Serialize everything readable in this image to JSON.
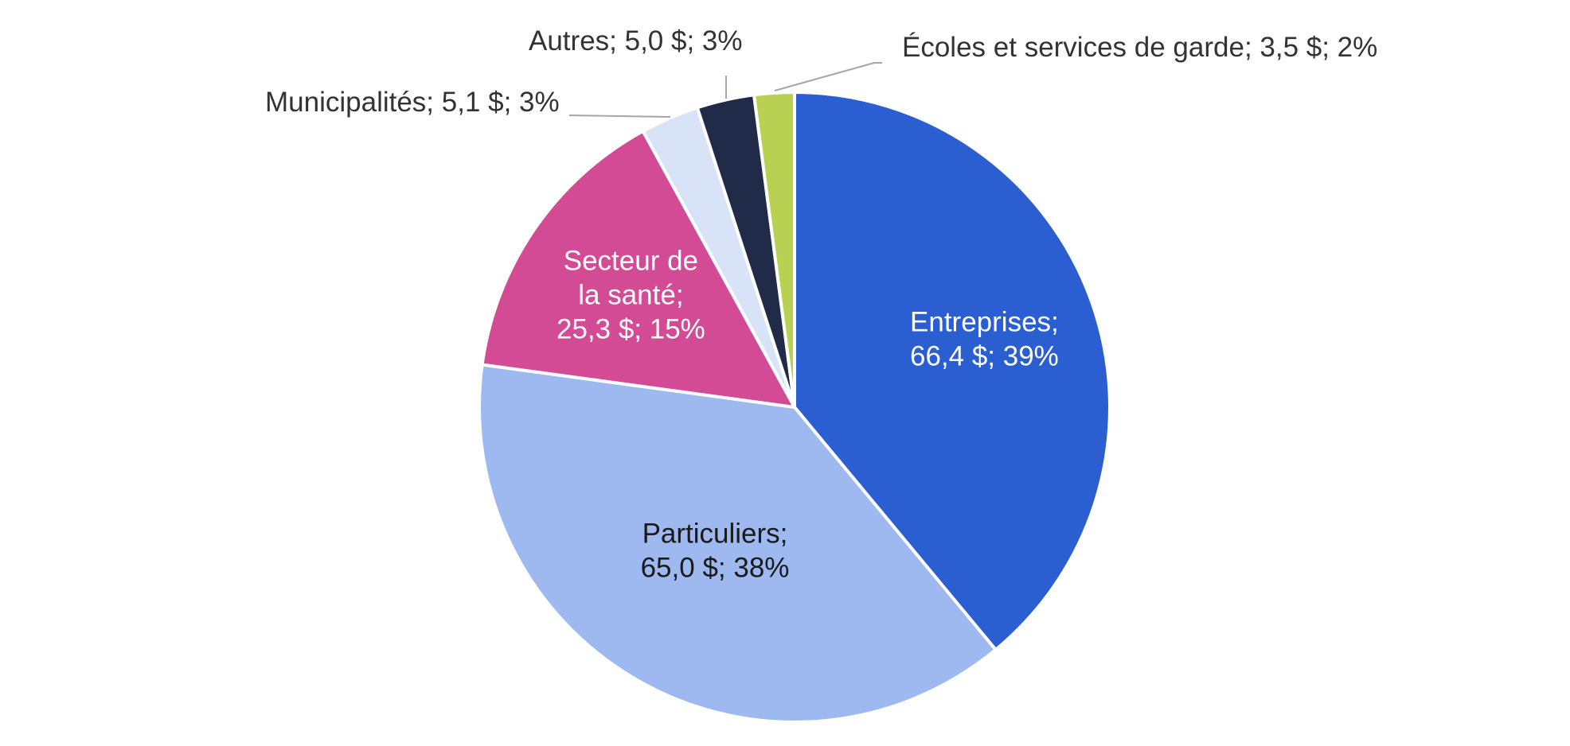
{
  "chart_data": {
    "type": "pie",
    "title": "",
    "start_angle_deg": 0,
    "direction": "clockwise",
    "slices": [
      {
        "name": "Entreprises",
        "value": 66.4,
        "value_label": "66,4 $",
        "percent_label": "39%",
        "color": "#2b5fd1",
        "label_lines": [
          "Entreprises;",
          "66,4 $; 39%"
        ],
        "label_color": "#ffffff",
        "label_placement": "inside"
      },
      {
        "name": "Particuliers",
        "value": 65.0,
        "value_label": "65,0 $",
        "percent_label": "38%",
        "color": "#9db9f0",
        "label_lines": [
          "Particuliers;",
          "65,0 $; 38%"
        ],
        "label_color": "#1a1a1a",
        "label_placement": "inside"
      },
      {
        "name": "Secteur de la santé",
        "value": 25.3,
        "value_label": "25,3 $",
        "percent_label": "15%",
        "color": "#d24b94",
        "label_lines": [
          "Secteur de",
          "la santé;",
          "25,3 $; 15%"
        ],
        "label_color": "#ffffff",
        "label_placement": "inside"
      },
      {
        "name": "Municipalités",
        "value": 5.1,
        "value_label": "5,1 $",
        "percent_label": "3%",
        "color": "#d9e3f8",
        "label_lines": [
          "Municipalités;  5,1 $; 3%"
        ],
        "label_color": "#333333",
        "label_placement": "outside-left"
      },
      {
        "name": "Autres",
        "value": 5.0,
        "value_label": "5,0 $",
        "percent_label": "3%",
        "color": "#1f2b48",
        "label_lines": [
          "Autres;  5,0 $; 3%"
        ],
        "label_color": "#333333",
        "label_placement": "outside-top"
      },
      {
        "name": "Écoles et services de garde",
        "value": 3.5,
        "value_label": "3,5 $",
        "percent_label": "2%",
        "color": "#b9d153",
        "label_lines": [
          "Écoles et services de garde;  3,5 $; 2%"
        ],
        "label_color": "#333333",
        "label_placement": "outside-right"
      }
    ],
    "legend": "none",
    "leader_line_color": "#a6a6a6"
  }
}
